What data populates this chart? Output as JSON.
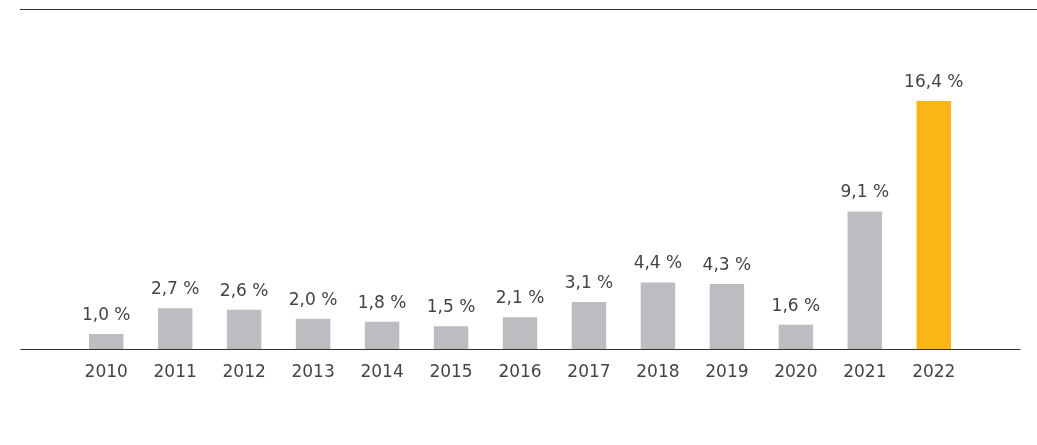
{
  "chart_data": {
    "type": "bar",
    "categories": [
      "2010",
      "2011",
      "2012",
      "2013",
      "2014",
      "2015",
      "2016",
      "2017",
      "2018",
      "2019",
      "2020",
      "2021",
      "2022"
    ],
    "values": [
      1.0,
      2.7,
      2.6,
      2.0,
      1.8,
      1.5,
      2.1,
      3.1,
      4.4,
      4.3,
      1.6,
      9.1,
      16.4
    ],
    "value_labels": [
      "1,0 %",
      "2,7 %",
      "2,6 %",
      "2,0 %",
      "1,8 %",
      "1,5 %",
      "2,1 %",
      "3,1 %",
      "4,4 %",
      "4,3 %",
      "1,6 %",
      "9,1 %",
      "16,4 %"
    ],
    "colors": [
      "#bcbdc0",
      "#bcbdc0",
      "#bcbdc0",
      "#bcbdc0",
      "#bcbdc0",
      "#bcbdc0",
      "#bcbdc0",
      "#bcbdc0",
      "#bcbdc0",
      "#bcbdc0",
      "#bcbdc0",
      "#bcbdc0",
      "#fbb616"
    ],
    "orientation": "vertical"
  }
}
